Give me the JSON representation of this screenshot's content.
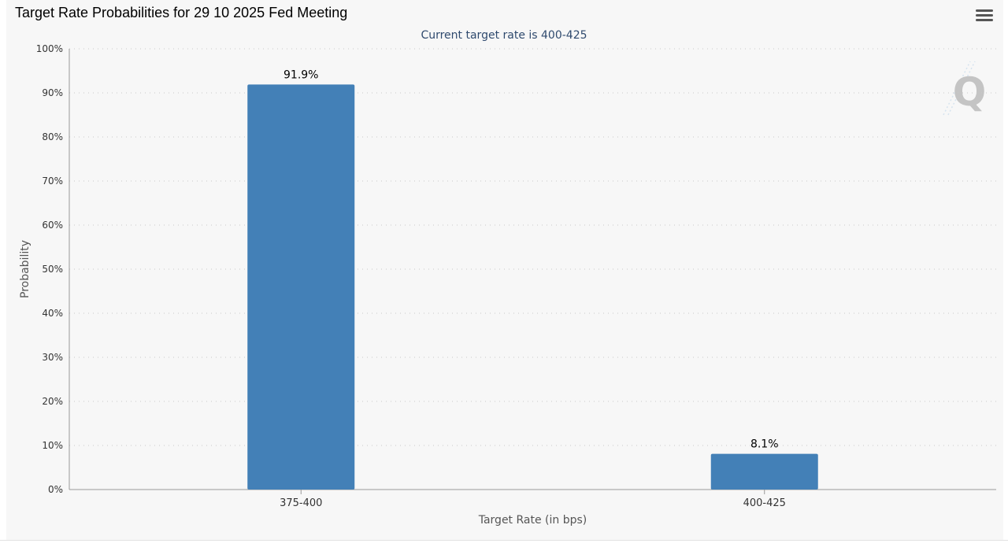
{
  "title": "Target Rate Probabilities for 29 10 2025 Fed Meeting",
  "colors": {
    "bar": "#4380b7",
    "background": "#f7f7f7",
    "subtitle": "#2f4a6e",
    "grid": "#c8c8c8"
  },
  "menu_icon": "hamburger-menu-icon",
  "logo_icon": "q-logo-icon",
  "chart_data": {
    "type": "bar",
    "title": "Target Rate Probabilities for 29 10 2025 Fed Meeting",
    "subtitle": "Current target rate is 400-425",
    "xlabel": "Target Rate (in bps)",
    "ylabel": "Probability",
    "categories": [
      "375-400",
      "400-425"
    ],
    "values": [
      91.9,
      8.1
    ],
    "data_labels": [
      "91.9%",
      "8.1%"
    ],
    "ylim": [
      0,
      100
    ],
    "yticks": [
      "0%",
      "10%",
      "20%",
      "30%",
      "40%",
      "50%",
      "60%",
      "70%",
      "80%",
      "90%",
      "100%"
    ],
    "grid": true,
    "legend": "none"
  }
}
